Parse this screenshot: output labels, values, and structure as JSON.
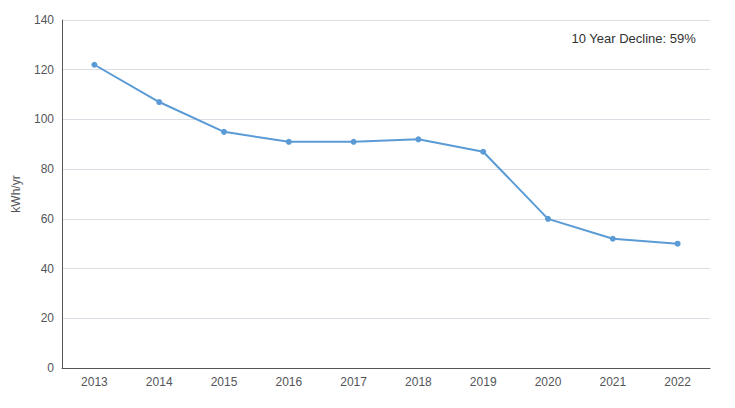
{
  "chart_data": {
    "type": "line",
    "x": [
      2013,
      2014,
      2015,
      2016,
      2017,
      2018,
      2019,
      2020,
      2021,
      2022
    ],
    "values": [
      122,
      107,
      95,
      91,
      91,
      92,
      87,
      60,
      52,
      50
    ],
    "color": "#5b9bd5",
    "marker": "o",
    "ylabel": "kWh/yr",
    "annotation": "10 Year Decline: 59%",
    "xlim": [
      2012.5,
      2022.5
    ],
    "xticks": [
      2013,
      2014,
      2015,
      2016,
      2017,
      2018,
      2019,
      2020,
      2021,
      2022
    ],
    "ylim": [
      0,
      140
    ],
    "yticks": [
      0,
      20,
      40,
      60,
      80,
      100,
      120,
      140
    ],
    "grid": true
  }
}
